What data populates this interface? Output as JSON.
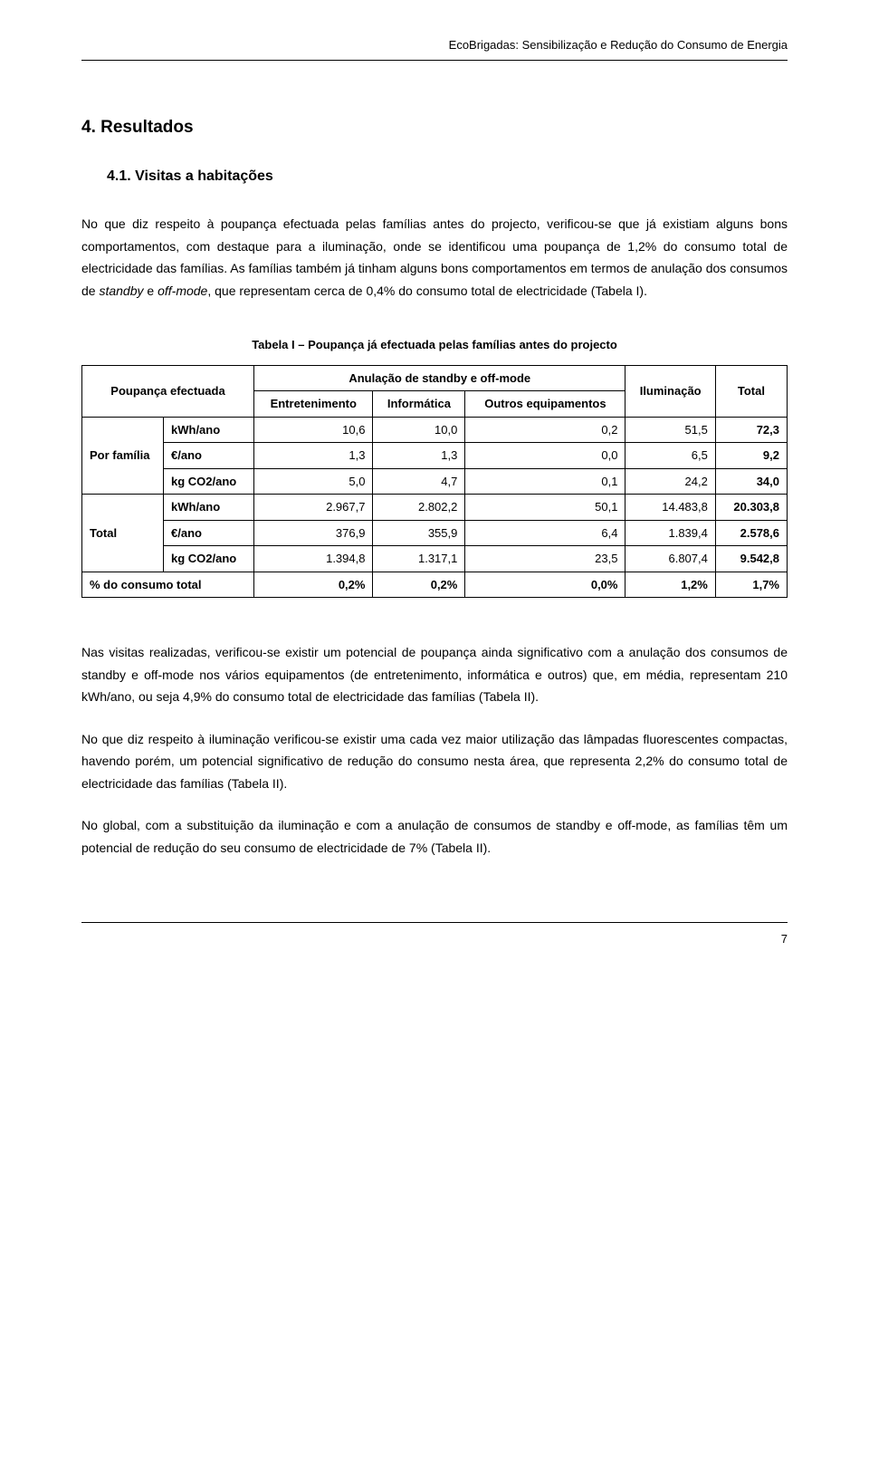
{
  "header": {
    "running_head": "EcoBrigadas: Sensibilização e Redução do Consumo de Energia"
  },
  "h1": "4. Resultados",
  "h2": "4.1. Visitas a habitações",
  "paragraphs": {
    "p1_a": "No que diz respeito à poupança efectuada pelas famílias antes do projecto, verificou-se que já existiam alguns bons comportamentos, com destaque para a iluminação, onde se identificou uma poupança de 1,2% do consumo total de electricidade das famílias. As famílias também já tinham alguns bons comportamentos em termos de anulação dos consumos de ",
    "p1_i1": "standby",
    "p1_b": " e ",
    "p1_i2": "off-mode",
    "p1_c": ", que representam cerca de 0,4% do consumo total de electricidade (",
    "p1_ref": "Tabela I",
    "p1_d": ").",
    "p2": "Nas visitas realizadas, verificou-se existir um potencial de poupança ainda significativo com a anulação dos consumos de standby e off-mode nos vários equipamentos (de entretenimento, informática e outros) que, em média, representam 210 kWh/ano, ou seja 4,9% do consumo total de electricidade das famílias (",
    "p2_ref": "Tabela II",
    "p2_end": ").",
    "p3": "No que diz respeito à iluminação verificou-se existir uma cada vez maior utilização das lâmpadas fluorescentes compactas, havendo porém, um potencial significativo de redução do consumo nesta área, que representa 2,2% do consumo total de electricidade das famílias (",
    "p3_ref": "Tabela II",
    "p3_end": ").",
    "p4": "No global, com a substituição da iluminação e com a anulação de consumos de standby e off-mode, as famílias têm um potencial de redução do seu consumo de electricidade de 7% (",
    "p4_ref": "Tabela II",
    "p4_end": ")."
  },
  "table": {
    "caption": "Tabela I – Poupança já efectuada pelas famílias antes do projecto",
    "stub_header": "Poupança efectuada",
    "span_header": "Anulação de standby e off-mode",
    "col_ent": "Entretenimento",
    "col_inf": "Informática",
    "col_out": "Outros equipamentos",
    "col_ilu": "Iluminação",
    "col_tot": "Total",
    "groups": [
      {
        "label": "Por família",
        "rows": [
          {
            "metric": "kWh/ano",
            "vals": [
              "10,6",
              "10,0",
              "0,2",
              "51,5",
              "72,3"
            ]
          },
          {
            "metric": "€/ano",
            "vals": [
              "1,3",
              "1,3",
              "0,0",
              "6,5",
              "9,2"
            ]
          },
          {
            "metric": "kg CO2/ano",
            "vals": [
              "5,0",
              "4,7",
              "0,1",
              "24,2",
              "34,0"
            ]
          }
        ]
      },
      {
        "label": "Total",
        "rows": [
          {
            "metric": "kWh/ano",
            "vals": [
              "2.967,7",
              "2.802,2",
              "50,1",
              "14.483,8",
              "20.303,8"
            ]
          },
          {
            "metric": "€/ano",
            "vals": [
              "376,9",
              "355,9",
              "6,4",
              "1.839,4",
              "2.578,6"
            ]
          },
          {
            "metric": "kg CO2/ano",
            "vals": [
              "1.394,8",
              "1.317,1",
              "23,5",
              "6.807,4",
              "9.542,8"
            ]
          }
        ]
      }
    ],
    "footer_label": "% do consumo total",
    "footer_vals": [
      "0,2%",
      "0,2%",
      "0,0%",
      "1,2%",
      "1,7%"
    ]
  },
  "page_number": "7"
}
